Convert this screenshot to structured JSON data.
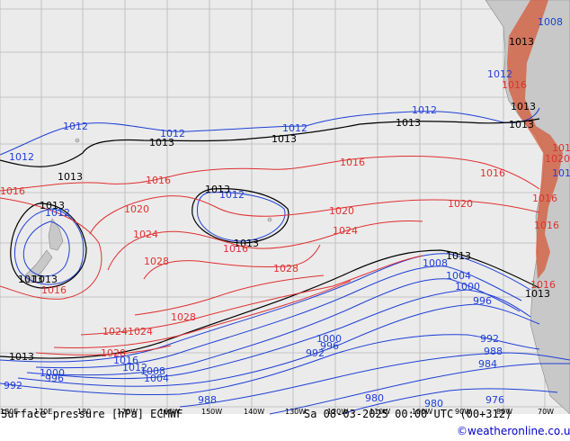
{
  "map": {
    "title": "Surface pressure [hPa] ECMWF",
    "valid_time": "Sa 08-03-2025 00:00 UTC (00+312)",
    "credit": "©weatheronline.co.uk",
    "colors": {
      "ocean": "#ebebeb",
      "land": "#c8c8c8",
      "isobar_low": "#1f3fd6",
      "isobar_ref": "#000000",
      "isobar_high": "#e03030"
    },
    "longitude_labels": [
      "180E",
      "170E",
      "180",
      "170W",
      "160W",
      "150W",
      "140W",
      "130W",
      "120W",
      "110W",
      "100W",
      "90W",
      "80W",
      "70W"
    ],
    "isobar_labels": {
      "blue": [
        "1012",
        "1012",
        "1012",
        "1012",
        "1012",
        "1012",
        "1012",
        "1008",
        "1004",
        "1000",
        "996",
        "992",
        "988",
        "984",
        "1000",
        "996",
        "992",
        "1016",
        "1012",
        "1008",
        "1004",
        "1000",
        "996",
        "992",
        "988",
        "980",
        "980",
        "976",
        "1008",
        "1012",
        "1016"
      ],
      "black": [
        "1013",
        "1013",
        "1013",
        "1013",
        "1013",
        "1013",
        "1013",
        "1013",
        "1013",
        "1013",
        "1013",
        "1013",
        "1013",
        "1013",
        "1013"
      ],
      "red": [
        "1016",
        "1016",
        "1016",
        "1016",
        "1016",
        "1016",
        "1020",
        "1020",
        "1020",
        "1024",
        "1024",
        "1024",
        "1024",
        "1028",
        "1028",
        "1028",
        "1020",
        "1016",
        "1020",
        "1016",
        "1016",
        "1016",
        "1016"
      ]
    }
  }
}
